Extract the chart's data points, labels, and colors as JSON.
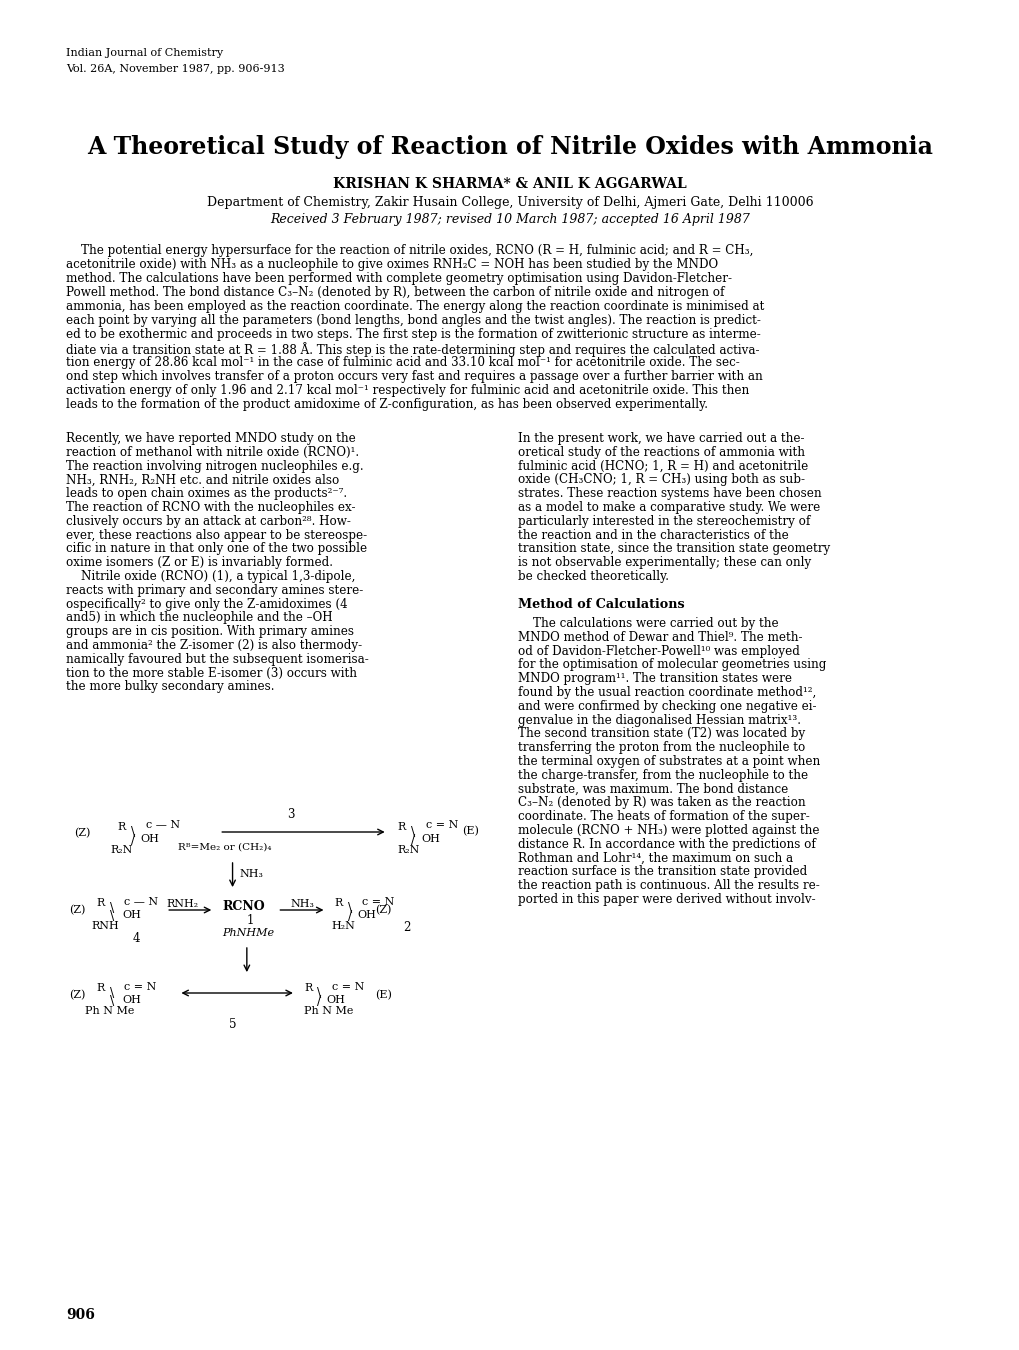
{
  "background_color": "#ffffff",
  "page_width": 10.2,
  "page_height": 13.5,
  "journal_line1": "Indian Journal of Chemistry",
  "journal_line2": "Vol. 26A, November 1987, pp. 906-913",
  "title": "A Theoretical Study of Reaction of Nitrile Oxides with Ammonia",
  "authors": "KRISHAN K SHARMA* & ANIL K AGGARWAL",
  "affiliation": "Department of Chemistry, Zakir Husain College, University of Delhi, Ajmeri Gate, Delhi 110006",
  "received": "Received 3 February 1987; revised 10 March 1987; accepted 16 April 1987",
  "abstract_lines": [
    "    The potential energy hypersurface for the reaction of nitrile oxides, RCNO (R = H, fulminic acid; and R = CH₃,",
    "acetonitrile oxide) with NH₃ as a nucleophile to give oximes RNH₂C = NOH has been studied by the MNDO",
    "method. The calculations have been performed with complete geometry optimisation using Davidon-Fletcher-",
    "Powell method. The bond distance C₃–N₂ (denoted by R), between the carbon of nitrile oxide and nitrogen of",
    "ammonia, has been employed as the reaction coordinate. The energy along the reaction coordinate is minimised at",
    "each point by varying all the parameters (bond lengths, bond angles and the twist angles). The reaction is predict-",
    "ed to be exothermic and proceeds in two steps. The first step is the formation of zwitterionic structure as interme-",
    "diate via a transition state at R = 1.88 Å. This step is the rate-determining step and requires the calculated activa-",
    "tion energy of 28.86 kcal mol⁻¹ in the case of fulminic acid and 33.10 kcal mol⁻¹ for acetonitrile oxide. The sec-",
    "ond step which involves transfer of a proton occurs very fast and requires a passage over a further barrier with an",
    "activation energy of only 1.96 and 2.17 kcal mol⁻¹ respectively for fulminic acid and acetonitrile oxide. This then",
    "leads to the formation of the product amidoxime of Z-configuration, as has been observed experimentally."
  ],
  "col1_lines": [
    "Recently, we have reported MNDO study on the",
    "reaction of methanol with nitrile oxide (RCNO)¹.",
    "The reaction involving nitrogen nucleophiles e.g.",
    "NH₃, RNH₂, R₂NH etc. and nitrile oxides also",
    "leads to open chain oximes as the products²⁻⁷.",
    "The reaction of RCNO with the nucleophiles ex-",
    "clusively occurs by an attack at carbon²⁸. How-",
    "ever, these reactions also appear to be stereospe-",
    "cific in nature in that only one of the two possible",
    "oxime isomers (Z or E) is invariably formed.",
    "    Nitrile oxide (RCNO) (1), a typical 1,3-dipole,",
    "reacts with primary and secondary amines stere-",
    "ospecifically² to give only the Z-amidoximes (4",
    "and5) in which the nucleophile and the –OH",
    "groups are in cis position. With primary amines",
    "and ammonia² the Z-isomer (2) is also thermody-",
    "namically favoured but the subsequent isomerisa-",
    "tion to the more stable E-isomer (3) occurs with",
    "the more bulky secondary amines."
  ],
  "col2_lines_1": [
    "In the present work, we have carried out a the-",
    "oretical study of the reactions of ammonia with",
    "fulminic acid (HCNO; 1, R = H) and acetonitrile",
    "oxide (CH₃CNO; 1, R = CH₃) using both as sub-",
    "strates. These reaction systems have been chosen",
    "as a model to make a comparative study. We were",
    "particularly interested in the stereochemistry of",
    "the reaction and in the characteristics of the",
    "transition state, since the transition state geometry",
    "is not observable experimentally; these can only",
    "be checked theoretically."
  ],
  "col2_section": "Method of Calculations",
  "col2_lines_2": [
    "    The calculations were carried out by the",
    "MNDO method of Dewar and Thiel⁹. The meth-",
    "od of Davidon-Fletcher-Powell¹⁰ was employed",
    "for the optimisation of molecular geometries using",
    "MNDO program¹¹. The transition states were",
    "found by the usual reaction coordinate method¹²,",
    "and were confirmed by checking one negative ei-",
    "genvalue in the diagonalised Hessian matrix¹³.",
    "The second transition state (T2) was located by",
    "transferring the proton from the nucleophile to",
    "the terminal oxygen of substrates at a point when",
    "the charge-transfer, from the nucleophile to the",
    "substrate, was maximum. The bond distance",
    "C₃–N₂ (denoted by R) was taken as the reaction",
    "coordinate. The heats of formation of the super-",
    "molecule (RCNO + NH₃) were plotted against the",
    "distance R. In accordance with the predictions of",
    "Rothman and Lohr¹⁴, the maximum on such a",
    "reaction surface is the transition state provided",
    "the reaction path is continuous. All the results re-",
    "ported in this paper were derived without involv-"
  ],
  "page_number": "906"
}
